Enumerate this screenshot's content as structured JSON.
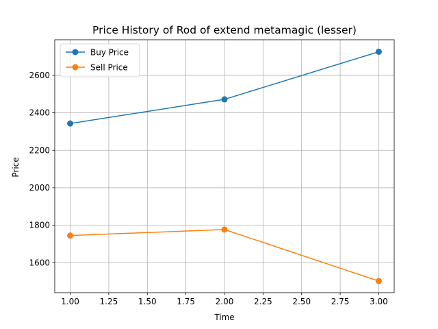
{
  "chart_data": {
    "type": "line",
    "title": "Price History of Rod of extend metamagic (lesser)",
    "xlabel": "Time",
    "ylabel": "Price",
    "x": [
      1.0,
      2.0,
      3.0
    ],
    "xlim": [
      0.9,
      3.1
    ],
    "ylim": [
      1440,
      2790
    ],
    "xticks": [
      1.0,
      1.25,
      1.5,
      1.75,
      2.0,
      2.25,
      2.5,
      2.75,
      3.0
    ],
    "xtick_labels": [
      "1.00",
      "1.25",
      "1.50",
      "1.75",
      "2.00",
      "2.25",
      "2.50",
      "2.75",
      "3.00"
    ],
    "yticks": [
      1600,
      1800,
      2000,
      2200,
      2400,
      2600
    ],
    "ytick_labels": [
      "1600",
      "1800",
      "2000",
      "2200",
      "2400",
      "2600"
    ],
    "grid": true,
    "legend_position": "top-left",
    "series": [
      {
        "name": "Buy Price",
        "color": "#1f77b4",
        "marker": "circle",
        "values": [
          2343,
          2472,
          2726
        ]
      },
      {
        "name": "Sell Price",
        "color": "#ff7f0e",
        "marker": "circle",
        "values": [
          1745,
          1777,
          1502
        ]
      }
    ]
  }
}
